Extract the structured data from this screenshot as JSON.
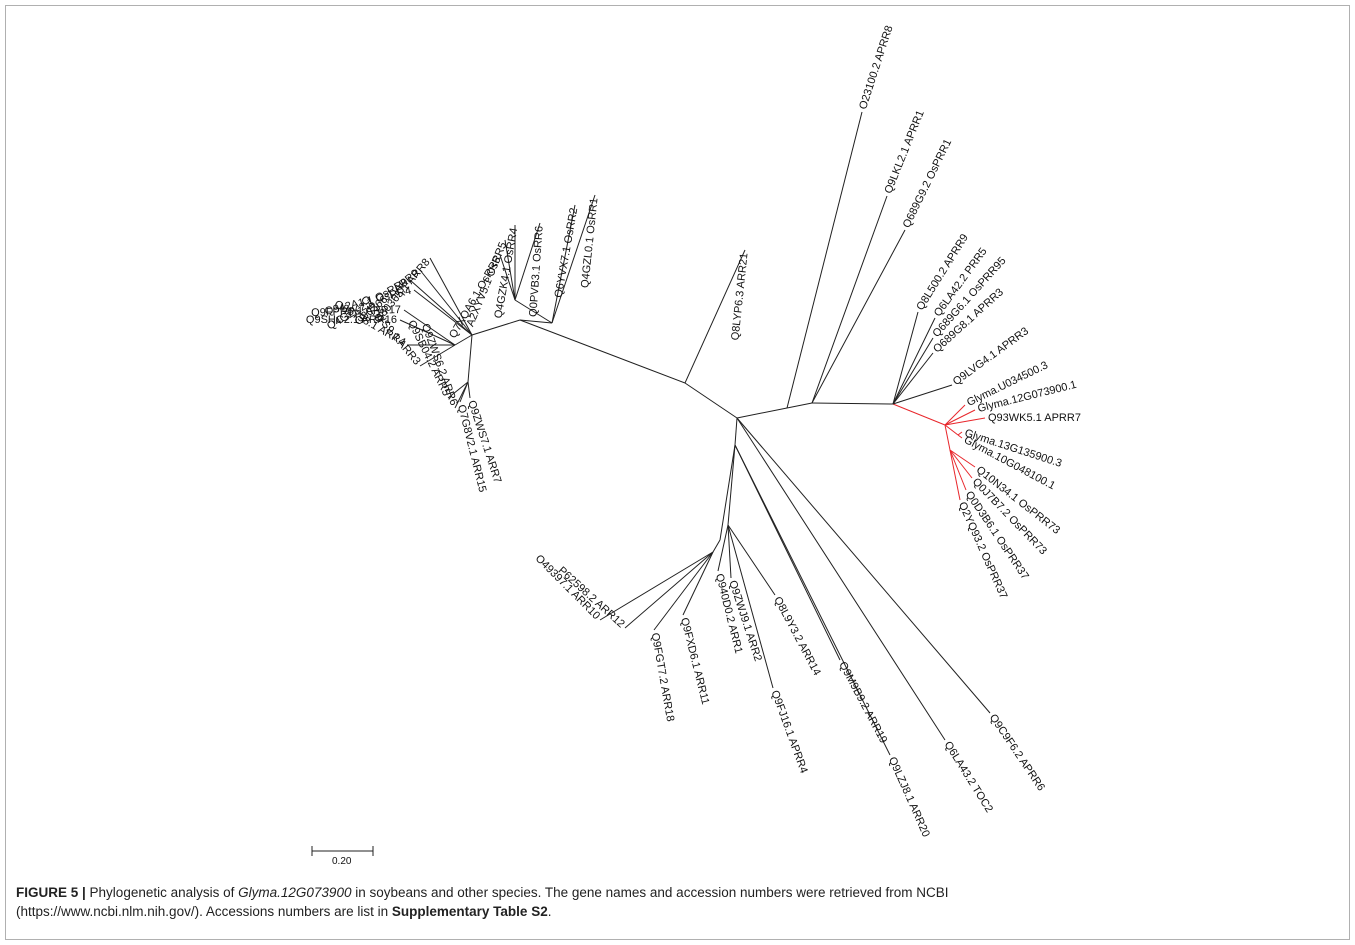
{
  "caption": {
    "label": "FIGURE 5 |",
    "text1": " Phylogenetic analysis of ",
    "gene": "Glyma.12G073900",
    "text2": " in soybeans and other species. The gene names and accession numbers were retrieved from NCBI",
    "line2": "(https://www.ncbi.nlm.nih.gov/). Accessions numbers are list in ",
    "table_ref": "Supplementary Table S2",
    "end": "."
  },
  "scale_bar": {
    "label": "0.20"
  },
  "colors": {
    "branch": "#202020",
    "highlight_clade": "#e8262b",
    "frame": "#b0b0b0"
  },
  "tree": {
    "leaves": [
      "O23100.2 APRR8",
      "Q9LKL2.1 APRR1",
      "Q689G9.2 OsPRR1",
      "Q8L500.2 APRR9",
      "Q6LA42.2 PRR5",
      "Q689G6.1 OsPRR95",
      "Q689G8.1 APRR3",
      "Q9LVG4.1 APRR3",
      "Glyma.U034500.3",
      "Glyma.12G073900.1",
      "Q93WK5.1 APRR7",
      "Glyma.13G135900.3",
      "Glyma.10G048100.1",
      "Q10N34.1 OsPRR73",
      "Q0J7B7.2 OsPRR73",
      "Q0D3B6.1 OsPRR37",
      "Q2YQ93.2 OsPRR37",
      "Q9C9F6.2 APRR6",
      "Q6LA43.2 TOC2",
      "Q9LZJ8.1 ARR20",
      "Q9M9B9.2 ARR19",
      "Q8L9Y3.2 ARR14",
      "Q9FJ16.1 APRR4",
      "Q9ZWJ9.1 ARR2",
      "Q940D0.2 ARR1",
      "Q9FXD6.1 ARR11",
      "Q9FGT7.2 ARR18",
      "P62598.2 ARR12",
      "O49397.1 ARR10",
      "Q9ZWS7.1 ARR7",
      "Q7G8V2.1 ARR15",
      "Q9ZWS6.2 ARR6",
      "Q9SB04.2 ARR5",
      "Q9ZWS9.1 ARR3",
      "O82798.1 ARR4",
      "Q9SHC2.1 ARR16",
      "Q9FPR6.1 ARR17",
      "Q942A1.1 OsRR4",
      "Q4GZK2.1 OsRR9",
      "O80366.1 ARR9",
      "O80365.1 ARR8",
      "Q7XQA6.1 OsRR6",
      "A2XYV5.1 OsRR5",
      "Q4GZK4.1 OsRR4",
      "Q0PVB3.1 OsRR6",
      "Q6YVX7.1 OsRR2",
      "Q4GZL0.1 OsRR1",
      "Q8LYP6.3 ARR21"
    ]
  }
}
